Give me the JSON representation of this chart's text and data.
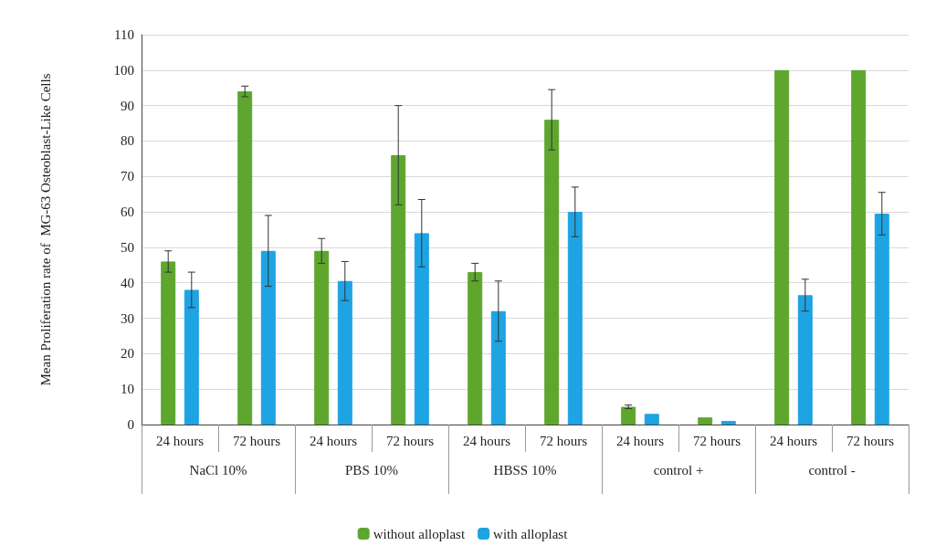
{
  "chart_data": {
    "type": "bar",
    "ylabel": "Mean Proliferation rate of  MG-63 Osteoblast-Like Cells",
    "categories": [
      "24 hours",
      "72 hours",
      "24 hours",
      "72 hours",
      "24 hours",
      "72 hours",
      "24 hours",
      "72 hours",
      "24 hours",
      "72 hours"
    ],
    "annotations": [
      "NaCl 10%",
      "PBS 10%",
      "HBSS 10%",
      "control +",
      "control -"
    ],
    "series": [
      {
        "name": "without alloplast",
        "color": "#5ea62e",
        "values": [
          46,
          94,
          49,
          76,
          43,
          86,
          5,
          2,
          100,
          100
        ],
        "errors": [
          3,
          1.5,
          3.5,
          14,
          2.5,
          8.5,
          0.5,
          null,
          null,
          null
        ]
      },
      {
        "name": "with alloplast",
        "color": "#1ea3e3",
        "values": [
          38,
          49,
          40.5,
          54,
          32,
          60,
          3,
          1,
          36.5,
          59.5
        ],
        "errors": [
          5,
          10,
          5.5,
          9.5,
          8.5,
          7,
          null,
          null,
          4.5,
          6
        ]
      }
    ],
    "ylim": [
      0,
      110
    ],
    "yticks": [
      0,
      10,
      20,
      30,
      40,
      50,
      60,
      70,
      80,
      90,
      100,
      110
    ],
    "grid": "y",
    "legend": "bottom"
  }
}
